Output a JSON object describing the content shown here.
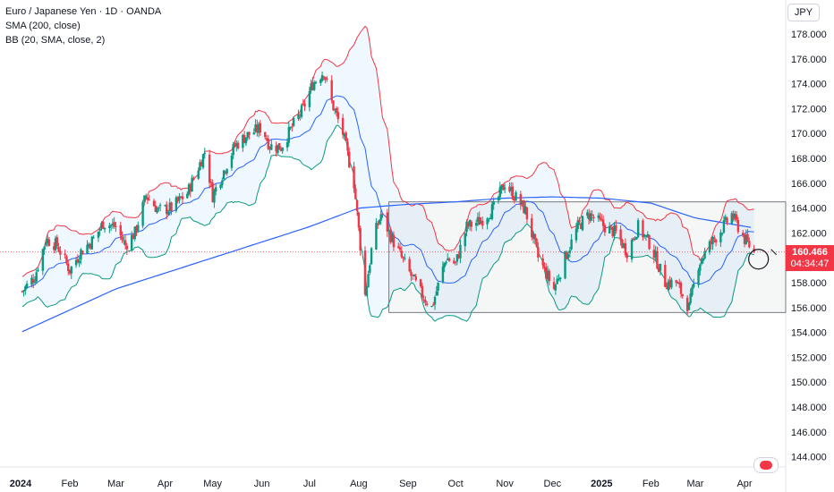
{
  "header": {
    "symbol_line": "Euro / Japanese Yen · 1D · OANDA",
    "sma_line": "SMA (200, close)",
    "bb_line": "BB (20, SMA, close, 2)",
    "currency": "JPY"
  },
  "price_tag": {
    "price": "160.466",
    "countdown": "04:34:47"
  },
  "colors": {
    "up": "#089981",
    "down": "#f23645",
    "sma": "#2962ff",
    "bb_upper": "#f23645",
    "bb_lower": "#089981",
    "bb_basis": "#2962ff",
    "bb_fill": "#2196f3",
    "range_box": "#787b86"
  },
  "chart_data": {
    "type": "candlestick",
    "y_axis": {
      "range": [
        143,
        179
      ],
      "ticks": [
        "178.000",
        "176.000",
        "174.000",
        "172.000",
        "170.000",
        "168.000",
        "166.000",
        "164.000",
        "162.000",
        "160.000",
        "158.000",
        "156.000",
        "154.000",
        "152.000",
        "150.000",
        "148.000",
        "146.000",
        "144.000"
      ],
      "tick_values": [
        178,
        176,
        174,
        172,
        170,
        168,
        166,
        164,
        162,
        160,
        158,
        156,
        154,
        152,
        150,
        148,
        146,
        144
      ]
    },
    "x_axis": {
      "labels": [
        "2024",
        "Feb",
        "Mar",
        "Apr",
        "May",
        "Jun",
        "Jul",
        "Aug",
        "Sep",
        "Oct",
        "Nov",
        "Dec",
        "2025",
        "Feb",
        "Mar",
        "Apr"
      ],
      "bold": [
        "2024",
        "2025"
      ]
    },
    "last_price": 160.466,
    "range_box": {
      "top": 164.5,
      "bottom": 155.6
    },
    "price_path": [
      [
        "2024-01-02",
        157.3
      ],
      [
        "2024-01-10",
        158.5
      ],
      [
        "2024-01-17",
        161.5
      ],
      [
        "2024-01-24",
        161.0
      ],
      [
        "2024-02-01",
        159.0
      ],
      [
        "2024-02-08",
        160.5
      ],
      [
        "2024-02-16",
        161.5
      ],
      [
        "2024-02-22",
        162.8
      ],
      [
        "2024-03-01",
        162.5
      ],
      [
        "2024-03-07",
        161.0
      ],
      [
        "2024-03-13",
        162.0
      ],
      [
        "2024-03-20",
        165.0
      ],
      [
        "2024-03-28",
        163.8
      ],
      [
        "2024-04-05",
        164.0
      ],
      [
        "2024-04-15",
        165.2
      ],
      [
        "2024-04-26",
        168.5
      ],
      [
        "2024-05-01",
        165.0
      ],
      [
        "2024-05-08",
        167.0
      ],
      [
        "2024-05-15",
        169.0
      ],
      [
        "2024-05-22",
        169.8
      ],
      [
        "2024-06-01",
        170.5
      ],
      [
        "2024-06-06",
        169.0
      ],
      [
        "2024-06-13",
        168.9
      ],
      [
        "2024-06-20",
        170.5
      ],
      [
        "2024-06-27",
        172.0
      ],
      [
        "2024-07-03",
        174.0
      ],
      [
        "2024-07-10",
        175.0
      ],
      [
        "2024-07-15",
        172.5
      ],
      [
        "2024-07-22",
        170.0
      ],
      [
        "2024-07-29",
        166.0
      ],
      [
        "2024-08-02",
        161.0
      ],
      [
        "2024-08-05",
        157.0
      ],
      [
        "2024-08-10",
        161.5
      ],
      [
        "2024-08-15",
        163.5
      ],
      [
        "2024-08-22",
        161.5
      ],
      [
        "2024-09-01",
        159.0
      ],
      [
        "2024-09-10",
        157.0
      ],
      [
        "2024-09-16",
        156.0
      ],
      [
        "2024-09-25",
        160.0
      ],
      [
        "2024-10-01",
        159.5
      ],
      [
        "2024-10-08",
        162.5
      ],
      [
        "2024-10-17",
        163.0
      ],
      [
        "2024-10-25",
        164.0
      ],
      [
        "2024-11-01",
        166.0
      ],
      [
        "2024-11-07",
        165.0
      ],
      [
        "2024-11-14",
        163.8
      ],
      [
        "2024-11-22",
        160.0
      ],
      [
        "2024-12-02",
        157.5
      ],
      [
        "2024-12-09",
        160.0
      ],
      [
        "2024-12-17",
        162.5
      ],
      [
        "2024-12-24",
        163.5
      ],
      [
        "2025-01-03",
        162.5
      ],
      [
        "2025-01-10",
        162.0
      ],
      [
        "2025-01-17",
        160.5
      ],
      [
        "2025-01-24",
        162.5
      ],
      [
        "2025-02-01",
        161.0
      ],
      [
        "2025-02-10",
        158.0
      ],
      [
        "2025-02-17",
        158.0
      ],
      [
        "2025-02-25",
        156.0
      ],
      [
        "2025-03-03",
        159.5
      ],
      [
        "2025-03-10",
        161.0
      ],
      [
        "2025-03-17",
        162.2
      ],
      [
        "2025-03-24",
        163.5
      ],
      [
        "2025-04-01",
        161.5
      ],
      [
        "2025-04-07",
        160.466
      ]
    ],
    "sma200_path": [
      [
        "2024-01-01",
        154.0
      ],
      [
        "2024-03-01",
        157.5
      ],
      [
        "2024-05-01",
        160.0
      ],
      [
        "2024-07-01",
        162.5
      ],
      [
        "2024-08-01",
        164.0
      ],
      [
        "2024-09-01",
        164.3
      ],
      [
        "2024-10-01",
        164.5
      ],
      [
        "2024-11-01",
        164.8
      ],
      [
        "2024-12-01",
        164.9
      ],
      [
        "2025-01-01",
        164.8
      ],
      [
        "2025-02-01",
        164.4
      ],
      [
        "2025-03-01",
        163.2
      ],
      [
        "2025-04-07",
        162.4
      ]
    ]
  }
}
